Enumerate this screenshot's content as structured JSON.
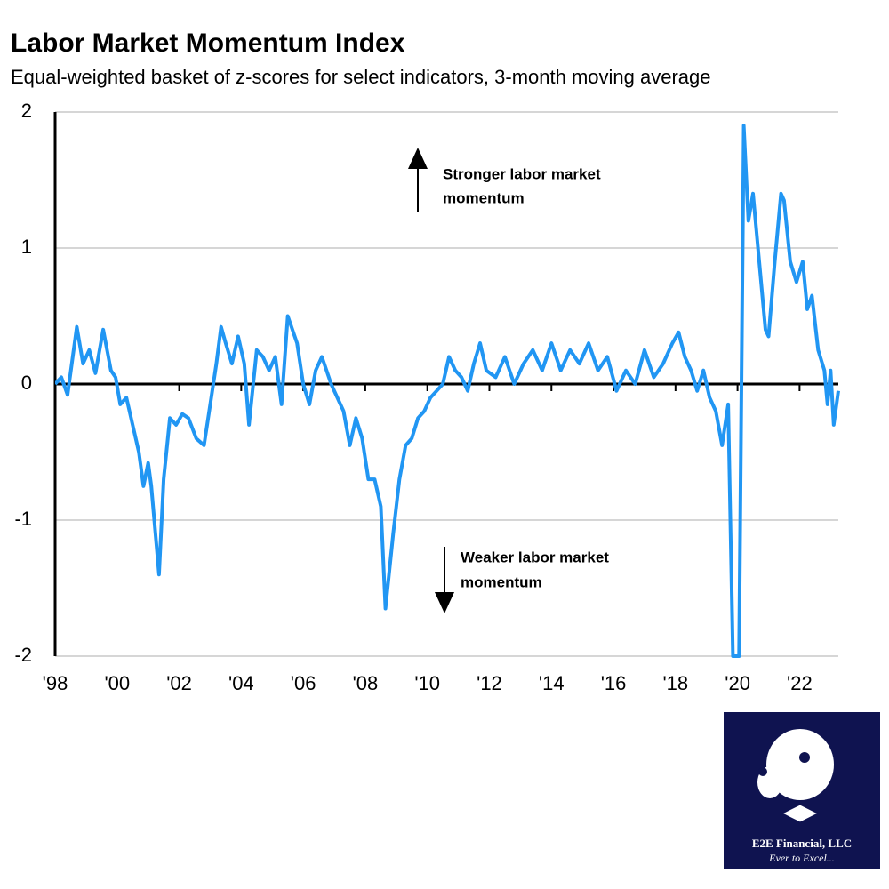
{
  "chart_data": {
    "type": "line",
    "title": "Labor Market Momentum Index",
    "subtitle": "Equal-weighted basket of z-scores for select indicators, 3-month moving average",
    "annotations": [
      "Stronger labor market",
      "momentum",
      "Weaker labor market",
      "momentum"
    ],
    "xlim": [
      1998,
      2023.25
    ],
    "ylim": [
      -2,
      2
    ],
    "yticks": [
      -2,
      -1,
      0,
      1,
      2
    ],
    "xticks": [
      {
        "value": 1998,
        "label": "'98"
      },
      {
        "value": 2000,
        "label": "'00"
      },
      {
        "value": 2002,
        "label": "'02"
      },
      {
        "value": 2004,
        "label": "'04"
      },
      {
        "value": 2006,
        "label": "'06"
      },
      {
        "value": 2008,
        "label": "'08"
      },
      {
        "value": 2010,
        "label": "'10"
      },
      {
        "value": 2012,
        "label": "'12"
      },
      {
        "value": 2014,
        "label": "'14"
      },
      {
        "value": 2016,
        "label": "'16"
      },
      {
        "value": 2018,
        "label": "'18"
      },
      {
        "value": 2020,
        "label": "'20"
      },
      {
        "value": 2022,
        "label": "'22"
      }
    ],
    "grid": true,
    "color": "#2196f3",
    "x": [
      1998.0,
      1998.2,
      1998.4,
      1998.7,
      1998.9,
      1999.1,
      1999.3,
      1999.55,
      1999.8,
      1999.95,
      2000.1,
      2000.3,
      2000.5,
      2000.7,
      2000.85,
      2001.0,
      2001.1,
      2001.35,
      2001.5,
      2001.7,
      2001.9,
      2002.1,
      2002.3,
      2002.55,
      2002.8,
      2003.0,
      2003.2,
      2003.35,
      2003.5,
      2003.7,
      2003.9,
      2004.1,
      2004.25,
      2004.5,
      2004.7,
      2004.9,
      2005.1,
      2005.3,
      2005.5,
      2005.8,
      2006.0,
      2006.2,
      2006.4,
      2006.6,
      2006.9,
      2007.1,
      2007.3,
      2007.5,
      2007.7,
      2007.9,
      2008.1,
      2008.3,
      2008.5,
      2008.65,
      2008.9,
      2009.1,
      2009.3,
      2009.5,
      2009.7,
      2009.9,
      2010.1,
      2010.3,
      2010.5,
      2010.7,
      2010.9,
      2011.1,
      2011.3,
      2011.5,
      2011.7,
      2011.9,
      2012.2,
      2012.5,
      2012.8,
      2013.1,
      2013.4,
      2013.7,
      2014.0,
      2014.3,
      2014.6,
      2014.9,
      2015.2,
      2015.5,
      2015.8,
      2016.1,
      2016.4,
      2016.7,
      2017.0,
      2017.3,
      2017.6,
      2017.9,
      2018.1,
      2018.3,
      2018.5,
      2018.7,
      2018.9,
      2019.1,
      2019.3,
      2019.5,
      2019.7,
      2019.85,
      2020.05,
      2020.2,
      2020.35,
      2020.5,
      2020.7,
      2020.9,
      2021.0,
      2021.2,
      2021.4,
      2021.5,
      2021.7,
      2021.9,
      2022.1,
      2022.25,
      2022.4,
      2022.6,
      2022.8,
      2022.9,
      2023.0,
      2023.1,
      2023.25
    ],
    "values": [
      0.0,
      0.05,
      -0.08,
      0.42,
      0.15,
      0.25,
      0.08,
      0.4,
      0.1,
      0.05,
      -0.15,
      -0.1,
      -0.3,
      -0.5,
      -0.75,
      -0.58,
      -0.75,
      -1.4,
      -0.7,
      -0.25,
      -0.3,
      -0.22,
      -0.25,
      -0.4,
      -0.45,
      -0.15,
      0.15,
      0.42,
      0.3,
      0.15,
      0.35,
      0.15,
      -0.3,
      0.25,
      0.2,
      0.1,
      0.2,
      -0.15,
      0.5,
      0.3,
      0.0,
      -0.15,
      0.1,
      0.2,
      0.0,
      -0.1,
      -0.2,
      -0.45,
      -0.25,
      -0.4,
      -0.7,
      -0.7,
      -0.9,
      -1.65,
      -1.1,
      -0.7,
      -0.45,
      -0.4,
      -0.25,
      -0.2,
      -0.1,
      -0.05,
      0.0,
      0.2,
      0.1,
      0.05,
      -0.05,
      0.15,
      0.3,
      0.1,
      0.05,
      0.2,
      0.0,
      0.15,
      0.25,
      0.1,
      0.3,
      0.1,
      0.25,
      0.15,
      0.3,
      0.1,
      0.2,
      -0.05,
      0.1,
      0.0,
      0.25,
      0.05,
      0.15,
      0.3,
      0.38,
      0.2,
      0.1,
      -0.05,
      0.1,
      -0.1,
      -0.2,
      -0.45,
      -0.15,
      -2.0,
      -2.0,
      1.9,
      1.2,
      1.4,
      0.9,
      0.4,
      0.35,
      0.9,
      1.4,
      1.35,
      0.9,
      0.75,
      0.9,
      0.55,
      0.65,
      0.25,
      0.1,
      -0.15,
      0.1,
      -0.3,
      -0.05
    ]
  },
  "logo": {
    "name": "E2E Financial, LLC",
    "tagline": "Ever to Excel..."
  }
}
